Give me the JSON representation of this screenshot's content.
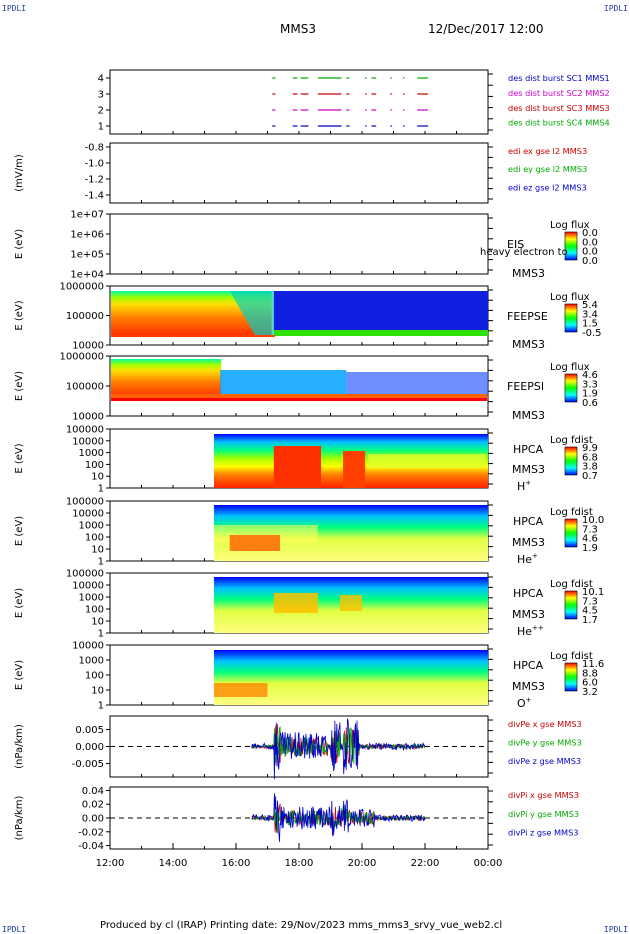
{
  "header": {
    "corner_tl": "IPDLI",
    "corner_tr": "IPDLI",
    "corner_bl": "IPDLI",
    "corner_br": "IPDLI",
    "spacecraft": "MMS3",
    "datetime": "12/Dec/2017 12:00"
  },
  "footer": {
    "text": "Produced by cl (IRAP)   Printing date: 29/Nov/2023   mms_mms3_srvy_vue_web2.cl"
  },
  "colors": {
    "blue": "#0000cc",
    "magenta": "#cc00cc",
    "red": "#cc0000",
    "green": "#00aa00"
  },
  "chart_data": [
    {
      "type": "line",
      "id": "burst",
      "ylim": [
        0.5,
        4.5
      ],
      "yticks": [
        "1",
        "2",
        "3",
        "4"
      ],
      "ylabel": "",
      "legend": [
        {
          "text": "des dist burst SC1 MMS1",
          "color": "#0000cc"
        },
        {
          "text": "des dist burst SC2 MMS2",
          "color": "#cc00cc"
        },
        {
          "text": "des dist burst SC3 MMS3",
          "color": "#cc0000"
        },
        {
          "text": "des dist burst SC4 MMS4",
          "color": "#00aa00"
        }
      ]
    },
    {
      "type": "line",
      "id": "edi",
      "ylim": [
        -1.5,
        -0.75
      ],
      "yticks": [
        "-0.8",
        "-1.0",
        "-1.2",
        "-1.4"
      ],
      "ylabel": "(mV/m)",
      "legend": [
        {
          "text": "edi ex gse l2 MMS3",
          "color": "#cc0000"
        },
        {
          "text": "edi ey gse l2 MMS3",
          "color": "#00aa00"
        },
        {
          "text": "edi ez gse l2 MMS3",
          "color": "#0000cc"
        }
      ]
    },
    {
      "type": "heatmap",
      "id": "eis",
      "ylabel": "E (eV)",
      "yticks": [
        "1e+07",
        "1e+06",
        "1e+05",
        "1e+04"
      ],
      "labels": [
        "EIS",
        "MMS3"
      ],
      "overlay_text": "heavy electron to",
      "colorbar_title": "Log flux",
      "colorbar_ticks": [
        "0.0",
        "0.0",
        "0.0",
        "0.0"
      ]
    },
    {
      "type": "heatmap",
      "id": "feepse",
      "ylabel": "E (eV)",
      "yticks": [
        "1000000",
        "100000",
        "10000"
      ],
      "labels": [
        "FEEPSE",
        "MMS3"
      ],
      "colorbar_title": "Log flux",
      "colorbar_ticks": [
        "5.4",
        "3.4",
        "1.5",
        "-0.5"
      ]
    },
    {
      "type": "heatmap",
      "id": "feepsi",
      "ylabel": "E (eV)",
      "yticks": [
        "1000000",
        "100000",
        "10000"
      ],
      "labels": [
        "FEEPSI",
        "MMS3"
      ],
      "colorbar_title": "Log flux",
      "colorbar_ticks": [
        "4.6",
        "3.3",
        "1.9",
        "0.6"
      ]
    },
    {
      "type": "heatmap",
      "id": "hpca-h",
      "ylabel": "E (eV)",
      "yticks": [
        "100000",
        "10000",
        "1000",
        "100",
        "10",
        "1"
      ],
      "labels": [
        "HPCA",
        "MMS3"
      ],
      "species": "H",
      "species_sup": "+",
      "colorbar_title": "Log fdist",
      "colorbar_ticks": [
        "9.9",
        "6.8",
        "3.8",
        "0.7"
      ]
    },
    {
      "type": "heatmap",
      "id": "hpca-he",
      "ylabel": "E (eV)",
      "yticks": [
        "100000",
        "10000",
        "1000",
        "100",
        "10",
        "1"
      ],
      "labels": [
        "HPCA",
        "MMS3"
      ],
      "species": "He",
      "species_sup": "+",
      "colorbar_title": "Log fdist",
      "colorbar_ticks": [
        "10.0",
        "7.3",
        "4.6",
        "1.9"
      ]
    },
    {
      "type": "heatmap",
      "id": "hpca-hepp",
      "ylabel": "E (eV)",
      "yticks": [
        "100000",
        "10000",
        "1000",
        "100",
        "10",
        "1"
      ],
      "labels": [
        "HPCA",
        "MMS3"
      ],
      "species": "He",
      "species_sup": "++",
      "colorbar_title": "Log fdist",
      "colorbar_ticks": [
        "10.1",
        "7.3",
        "4.5",
        "1.7"
      ]
    },
    {
      "type": "heatmap",
      "id": "hpca-o",
      "ylabel": "E (eV)",
      "yticks": [
        "10000",
        "1000",
        "100",
        "10",
        "1"
      ],
      "labels": [
        "HPCA",
        "MMS3"
      ],
      "species": "O",
      "species_sup": "+",
      "colorbar_title": "Log fdist",
      "colorbar_ticks": [
        "11.6",
        "8.8",
        "6.0",
        "3.2"
      ]
    },
    {
      "type": "line",
      "id": "divpe",
      "ylim": [
        -0.009,
        0.009
      ],
      "yticks": [
        "0.005",
        "0.000",
        "-0.005"
      ],
      "ylabel": "(nPa/km)",
      "legend": [
        {
          "text": "divPe x gse MMS3",
          "color": "#cc0000"
        },
        {
          "text": "divPe y gse MMS3",
          "color": "#00aa00"
        },
        {
          "text": "divPe z gse MMS3",
          "color": "#0000cc"
        }
      ]
    },
    {
      "type": "line",
      "id": "divpi",
      "ylim": [
        -0.045,
        0.045
      ],
      "yticks": [
        "0.04",
        "0.02",
        "0.00",
        "-0.02",
        "-0.04"
      ],
      "ylabel": "(nPa/km)",
      "legend": [
        {
          "text": "divPi x gse MMS3",
          "color": "#cc0000"
        },
        {
          "text": "divPi y gse MMS3",
          "color": "#00aa00"
        },
        {
          "text": "divPi z gse MMS3",
          "color": "#0000cc"
        }
      ]
    }
  ],
  "x_axis": {
    "ticks": [
      "12:00",
      "14:00",
      "16:00",
      "18:00",
      "20:00",
      "22:00",
      "00:00"
    ],
    "range_hours": [
      12,
      24
    ]
  }
}
